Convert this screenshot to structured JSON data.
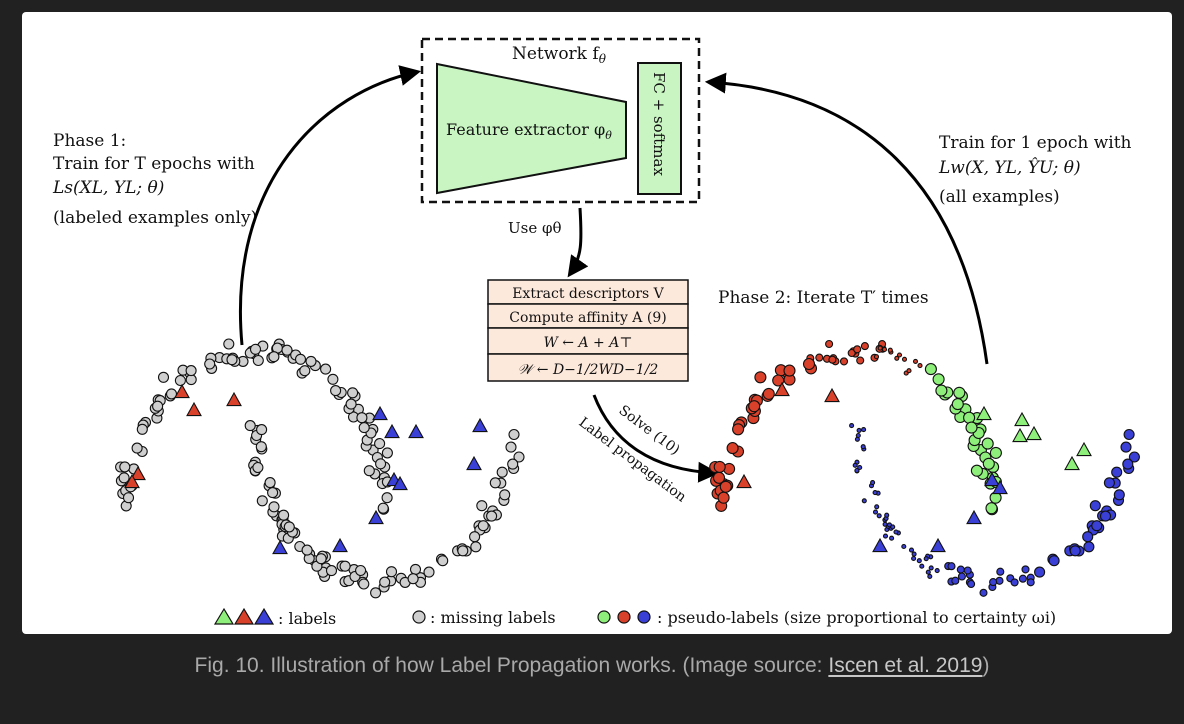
{
  "diagram": {
    "network_title": "Network f",
    "network_title_sub": "θ",
    "feature_extractor": "Feature extractor φ",
    "feature_extractor_sub": "θ",
    "fc_softmax": "FC + softmax",
    "phase1": {
      "line1": "Phase 1:",
      "line2": "Train for T epochs with",
      "line3": "Ls(XL, YL; θ)",
      "line4": "(labeled examples only)"
    },
    "phase2_train": {
      "line1": "Train for 1 epoch with",
      "line2": "Lw(X, YL, ŶU; θ)",
      "line3": "(all examples)"
    },
    "use_phi": "Use φθ",
    "steps": [
      "Extract descriptors V",
      "Compute affinity A (9)",
      "W ← A + A⊤",
      "𝒲 ← D−1/2WD−1/2"
    ],
    "phase2_iterate": "Phase 2: Iterate T′ times",
    "solve": "Solve (10)",
    "label_propagation": "Label propagation",
    "legend": {
      "labels": ": labels",
      "missing": ": missing labels",
      "pseudo": ": pseudo-labels (size proportional to certainty ωi)"
    },
    "colors": {
      "red": "#d9412b",
      "green": "#8ef07a",
      "blue": "#3a3fd6",
      "gray": "#cfcfcf",
      "box_fill": "#c9f5c3",
      "step_fill": "#fde9dc"
    }
  },
  "caption": {
    "text": "Fig. 10. Illustration of how Label Propagation works. (Image source: ",
    "link": "Iscen et al. 2019",
    "tail": ")"
  }
}
